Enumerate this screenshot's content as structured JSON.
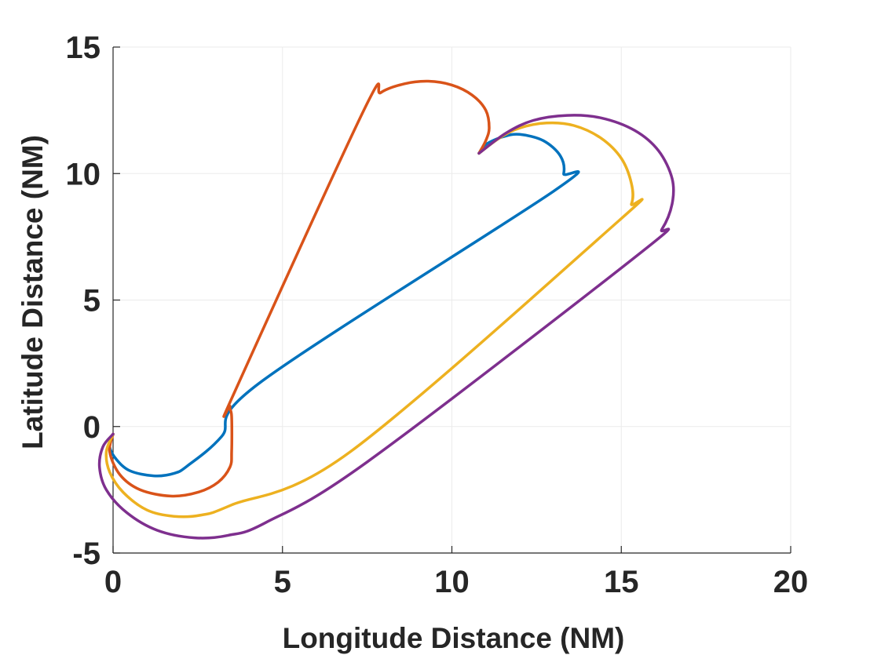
{
  "chart_data": {
    "type": "line",
    "title": "",
    "xlabel": "Longitude Distance (NM)",
    "ylabel": "Latitude Distance (NM)",
    "xlim": [
      0,
      20
    ],
    "ylim": [
      -5,
      15
    ],
    "xticks": [
      "0",
      "5",
      "10",
      "20"
    ],
    "xticks_all": [
      "0",
      "5",
      "10",
      "15",
      "20"
    ],
    "yticks_all": [
      "-5",
      "0",
      "5",
      "10",
      "15"
    ],
    "grid": true,
    "legend": "none",
    "series": [
      {
        "color": "#0072bd",
        "points": [
          [
            0.0,
            -0.3
          ],
          [
            -0.1,
            -0.8
          ],
          [
            0.1,
            -1.3
          ],
          [
            0.5,
            -1.75
          ],
          [
            1.2,
            -1.95
          ],
          [
            1.8,
            -1.85
          ],
          [
            2.2,
            -1.55
          ],
          [
            3.2,
            -0.4
          ],
          [
            4.4,
            1.8
          ],
          [
            13.0,
            9.3
          ],
          [
            13.3,
            10.0
          ],
          [
            13.2,
            10.7
          ],
          [
            12.7,
            11.3
          ],
          [
            12.0,
            11.55
          ],
          [
            11.5,
            11.45
          ],
          [
            11.0,
            11.15
          ],
          [
            10.8,
            10.8
          ]
        ]
      },
      {
        "color": "#d95319",
        "points": [
          [
            0.0,
            -0.3
          ],
          [
            -0.1,
            -1.0
          ],
          [
            0.2,
            -1.9
          ],
          [
            0.8,
            -2.5
          ],
          [
            1.7,
            -2.75
          ],
          [
            2.5,
            -2.6
          ],
          [
            3.1,
            -2.2
          ],
          [
            3.45,
            -1.6
          ],
          [
            3.5,
            -1.0
          ],
          [
            3.5,
            0.4
          ],
          [
            3.45,
            0.8
          ],
          [
            3.6,
            1.4
          ],
          [
            7.4,
            12.5
          ],
          [
            7.9,
            13.2
          ],
          [
            8.6,
            13.55
          ],
          [
            9.3,
            13.65
          ],
          [
            10.0,
            13.5
          ],
          [
            10.6,
            13.1
          ],
          [
            11.0,
            12.5
          ],
          [
            11.1,
            11.8
          ],
          [
            11.0,
            11.3
          ],
          [
            10.8,
            10.8
          ]
        ]
      },
      {
        "color": "#edb120",
        "points": [
          [
            0.0,
            -0.3
          ],
          [
            -0.2,
            -1.0
          ],
          [
            -0.1,
            -1.8
          ],
          [
            0.3,
            -2.6
          ],
          [
            1.0,
            -3.3
          ],
          [
            1.8,
            -3.55
          ],
          [
            2.6,
            -3.5
          ],
          [
            3.5,
            -3.1
          ],
          [
            7.0,
            -1.0
          ],
          [
            14.9,
            8.1
          ],
          [
            15.3,
            8.8
          ],
          [
            15.3,
            9.6
          ],
          [
            15.0,
            10.6
          ],
          [
            14.4,
            11.4
          ],
          [
            13.6,
            11.9
          ],
          [
            12.8,
            12.0
          ],
          [
            12.0,
            11.8
          ],
          [
            11.4,
            11.4
          ],
          [
            10.8,
            10.8
          ]
        ]
      },
      {
        "color": "#7e2f8e",
        "points": [
          [
            0.0,
            -0.3
          ],
          [
            -0.3,
            -0.8
          ],
          [
            -0.4,
            -1.6
          ],
          [
            -0.2,
            -2.5
          ],
          [
            0.4,
            -3.4
          ],
          [
            1.3,
            -4.1
          ],
          [
            2.4,
            -4.4
          ],
          [
            3.4,
            -4.3
          ],
          [
            4.5,
            -3.8
          ],
          [
            7.5,
            -1.4
          ],
          [
            15.6,
            6.9
          ],
          [
            16.2,
            7.8
          ],
          [
            16.5,
            8.8
          ],
          [
            16.5,
            9.8
          ],
          [
            16.1,
            10.9
          ],
          [
            15.4,
            11.7
          ],
          [
            14.4,
            12.2
          ],
          [
            13.4,
            12.3
          ],
          [
            12.4,
            12.1
          ],
          [
            11.6,
            11.6
          ],
          [
            10.8,
            10.8
          ]
        ]
      }
    ]
  }
}
